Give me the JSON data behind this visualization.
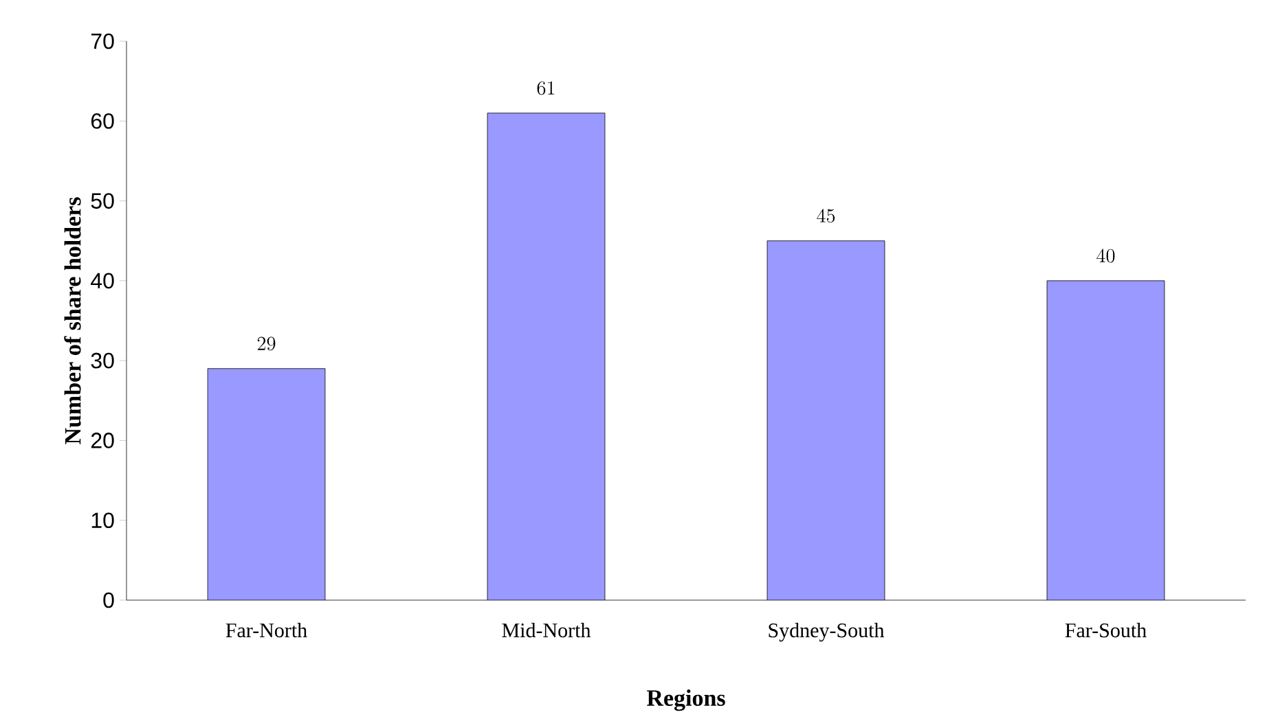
{
  "chart_data": {
    "type": "bar",
    "xlabel": "Regions",
    "ylabel": "Number of share holders",
    "categories": [
      "Far-North",
      "Mid-North",
      "Sydney-South",
      "Far-South"
    ],
    "values": [
      29,
      61,
      45,
      40
    ],
    "color": "#9999ff",
    "ylim": [
      0,
      70
    ],
    "yticks": [
      0,
      10,
      20,
      30,
      40,
      50,
      60,
      70
    ],
    "data_labels": true,
    "grid": false
  }
}
